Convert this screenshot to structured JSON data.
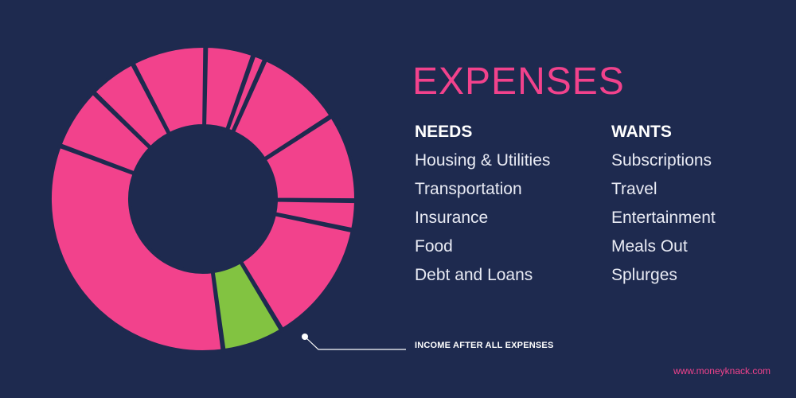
{
  "title": "EXPENSES",
  "needs": {
    "heading": "NEEDS",
    "items": [
      "Housing & Utilities",
      "Transportation",
      "Insurance",
      "Food",
      "Debt and Loans"
    ]
  },
  "wants": {
    "heading": "WANTS",
    "items": [
      "Subscriptions",
      "Travel",
      "Entertainment",
      "Meals Out",
      "Splurges"
    ]
  },
  "callout": "INCOME AFTER ALL EXPENSES",
  "footer_url": "www.moneyknack.com",
  "colors": {
    "background": "#1e2a4f",
    "expense_slice": "#f2428c",
    "income_slice": "#82c341",
    "title": "#f2428c",
    "text": "#ffffff"
  },
  "donut_segments": [
    {
      "category": "expense",
      "share": 0.051
    },
    {
      "category": "expense",
      "share": 0.013
    },
    {
      "category": "expense",
      "share": 0.092
    },
    {
      "category": "expense",
      "share": 0.093
    },
    {
      "category": "expense",
      "share": 0.031
    },
    {
      "category": "expense",
      "share": 0.131
    },
    {
      "category": "income",
      "share": 0.065
    },
    {
      "category": "expense",
      "share": 0.328
    },
    {
      "category": "expense",
      "share": 0.066
    },
    {
      "category": "expense",
      "share": 0.051
    },
    {
      "category": "expense",
      "share": 0.079
    }
  ]
}
